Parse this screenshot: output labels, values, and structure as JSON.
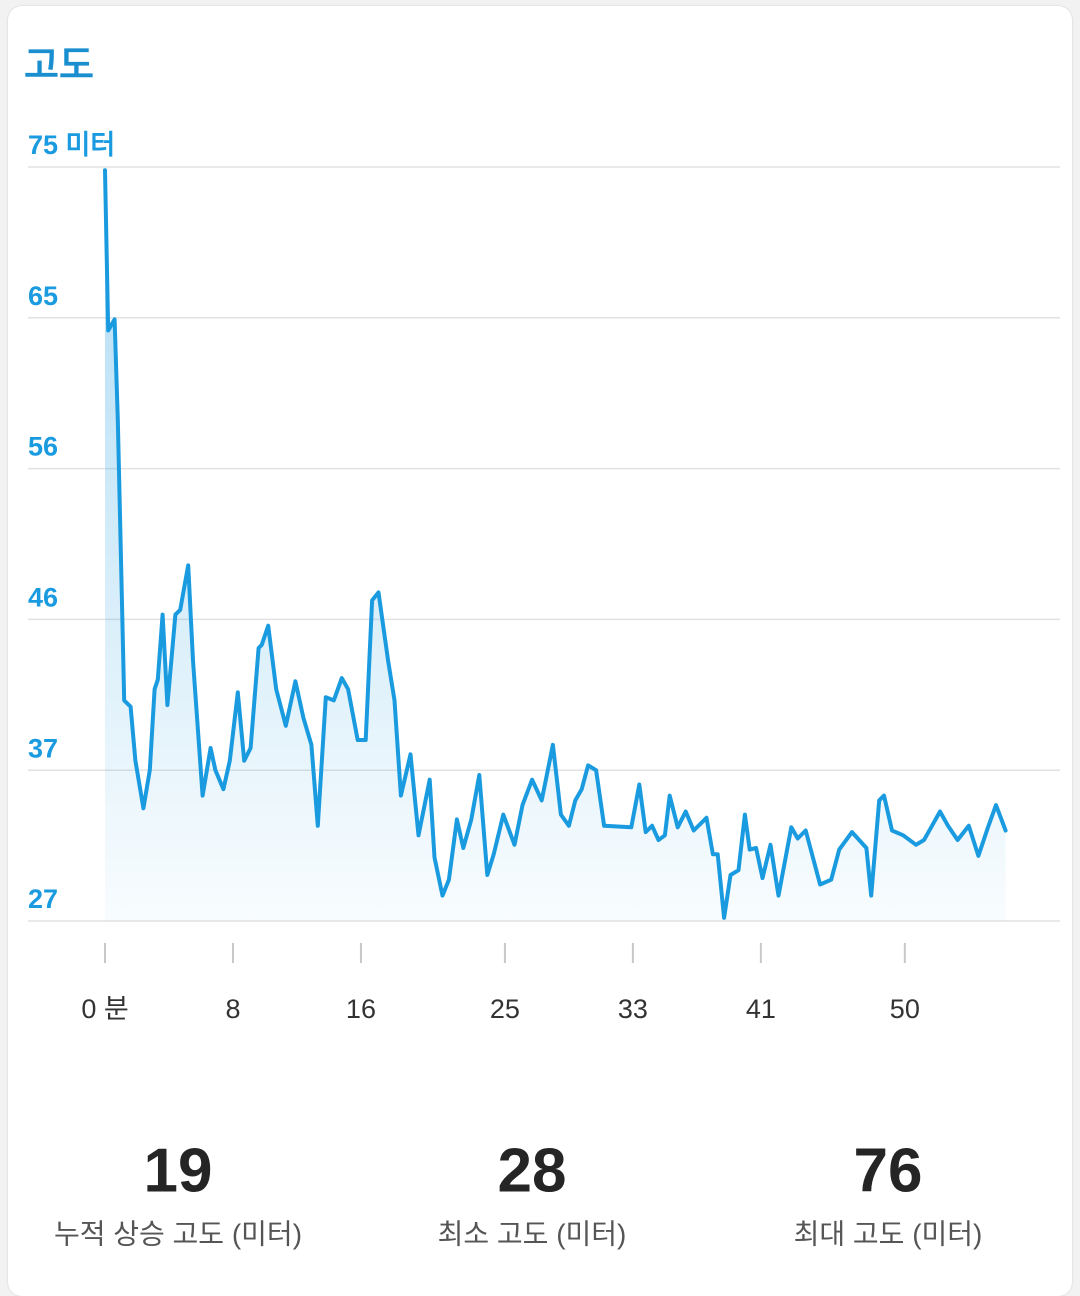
{
  "chart_data": {
    "type": "line",
    "title": "고도",
    "color": "#1a9be0",
    "xlim": [
      0,
      59.7
    ],
    "ylim": [
      27.4,
      74.9
    ],
    "xticks": [
      {
        "value": 0,
        "label": "0 분"
      },
      8,
      16,
      25,
      33,
      41,
      50
    ],
    "yticks": [
      {
        "value": 74.9,
        "label": "75 미터"
      },
      {
        "value": 65.4,
        "label": "65"
      },
      {
        "value": 55.9,
        "label": "56"
      },
      {
        "value": 46.4,
        "label": "46"
      },
      {
        "value": 36.9,
        "label": "37"
      },
      {
        "value": 27.4,
        "label": "27"
      }
    ],
    "grid": true,
    "x": [
      0,
      0.2,
      0.6,
      0.8,
      1.2,
      1.6,
      1.9,
      2.4,
      2.8,
      3.1,
      3.3,
      3.6,
      3.9,
      4.4,
      4.7,
      5.2,
      5.5,
      6.1,
      6.6,
      6.9,
      7.4,
      7.8,
      8.3,
      8.7,
      9.1,
      9.6,
      9.8,
      10.2,
      10.7,
      11.3,
      11.9,
      12.4,
      12.9,
      13.3,
      13.8,
      14.3,
      14.8,
      15.2,
      15.8,
      16.3,
      16.7,
      17.1,
      17.7,
      18.1,
      18.5,
      19.1,
      19.6,
      20.3,
      20.6,
      21.1,
      21.5,
      22,
      22.4,
      22.9,
      23.4,
      23.9,
      24.3,
      24.9,
      25.6,
      26.1,
      26.7,
      27.3,
      28,
      28.5,
      29,
      29.4,
      29.8,
      30.2,
      30.7,
      31.2,
      32.9,
      33.4,
      33.8,
      34.2,
      34.6,
      35,
      35.3,
      35.8,
      36.3,
      36.8,
      37.6,
      38,
      38.3,
      38.7,
      39.1,
      39.6,
      40,
      40.3,
      40.7,
      41.1,
      41.6,
      42.1,
      42.9,
      43.3,
      43.8,
      44.7,
      45.4,
      45.9,
      46.7,
      47.6,
      47.9,
      48.4,
      48.7,
      49.2,
      49.9,
      50.7,
      51.2,
      51.7,
      52.2,
      52.7,
      53.3,
      54,
      54.6,
      55.2,
      55.7,
      56.3
    ],
    "values": [
      74.7,
      64.6,
      65.3,
      59,
      41.3,
      40.9,
      37.5,
      34.5,
      36.9,
      42,
      42.6,
      46.7,
      41,
      46.7,
      47,
      49.8,
      43.8,
      35.3,
      38.3,
      36.9,
      35.7,
      37.5,
      41.8,
      37.5,
      38.3,
      44.6,
      44.8,
      46,
      42,
      39.7,
      42.5,
      40.2,
      38.5,
      33.4,
      41.5,
      41.3,
      42.7,
      42,
      38.8,
      38.8,
      47.6,
      48.1,
      43.8,
      41.3,
      35.3,
      37.9,
      32.8,
      36.3,
      31.4,
      29,
      30,
      33.8,
      32,
      33.8,
      36.6,
      30.3,
      31.6,
      34.1,
      32.2,
      34.7,
      36.3,
      35,
      38.5,
      34.1,
      33.4,
      35,
      35.7,
      37.2,
      36.9,
      33.4,
      33.3,
      36,
      33,
      33.4,
      32.5,
      32.8,
      35.3,
      33.3,
      34.3,
      33.1,
      33.9,
      31.6,
      31.6,
      27.6,
      30.3,
      30.6,
      34.1,
      31.9,
      32,
      30.1,
      32.2,
      29,
      33.3,
      32.6,
      33.1,
      29.7,
      30,
      31.9,
      33,
      32,
      29,
      35,
      35.3,
      33.1,
      32.8,
      32.2,
      32.5,
      33.4,
      34.3,
      33.4,
      32.5,
      33.4,
      31.5,
      33.3,
      34.7,
      33.1
    ]
  },
  "stats": [
    {
      "value": 19,
      "label": "누적 상승 고도 (미터)"
    },
    {
      "value": 28,
      "label": "최소 고도 (미터)"
    },
    {
      "value": 76,
      "label": "최대 고도 (미터)"
    }
  ]
}
